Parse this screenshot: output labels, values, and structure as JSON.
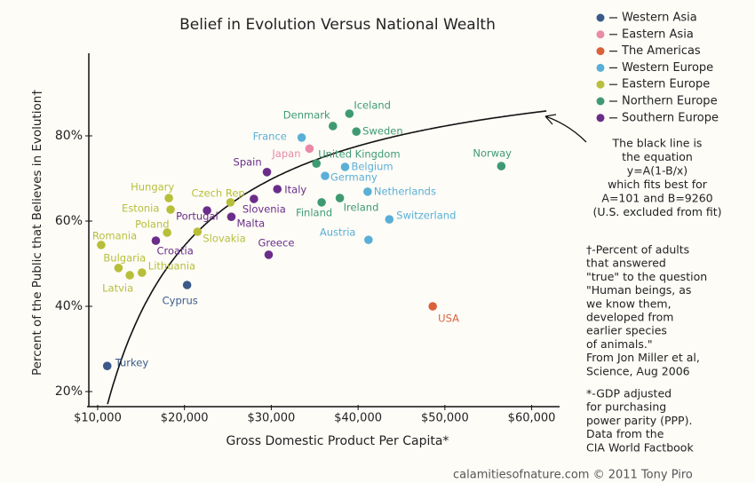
{
  "chart_data": {
    "type": "scatter",
    "title": "Belief in Evolution Versus National Wealth",
    "x_label": "Gross Domestic Product Per Capita*",
    "y_label": "Percent of the Public that Believes in Evolution†",
    "xlim": [
      9000,
      62500
    ],
    "ylim": [
      17,
      97
    ],
    "xticks": [
      {
        "value": 10000,
        "label": "$10,000"
      },
      {
        "value": 20000,
        "label": "$20,000"
      },
      {
        "value": 30000,
        "label": "$30,000"
      },
      {
        "value": 40000,
        "label": "$40,000"
      },
      {
        "value": 50000,
        "label": "$50,000"
      },
      {
        "value": 60000,
        "label": "$60,000"
      }
    ],
    "yticks": [
      {
        "value": 20,
        "label": "20%"
      },
      {
        "value": 40,
        "label": "40%"
      },
      {
        "value": 60,
        "label": "60%"
      },
      {
        "value": 80,
        "label": "80%"
      }
    ],
    "fit": {
      "A": 101,
      "B": 9260
    },
    "series": [
      {
        "name": "Western Asia",
        "color": "#3b5a8a",
        "labels": [
          "Turkey",
          "Cyprus"
        ],
        "x": [
          11100,
          20300
        ],
        "values": [
          26,
          45
        ]
      },
      {
        "name": "Eastern Asia",
        "color": "#e88aa8",
        "labels": [
          "Japan"
        ],
        "x": [
          34400
        ],
        "values": [
          77
        ]
      },
      {
        "name": "The Americas",
        "color": "#d9623b",
        "labels": [
          "USA"
        ],
        "x": [
          48600
        ],
        "values": [
          40
        ]
      },
      {
        "name": "Western Europe",
        "color": "#5aafd6",
        "labels": [
          "France",
          "Belgium",
          "Germany",
          "Netherlands",
          "Switzerland",
          "Austria"
        ],
        "x": [
          33500,
          38500,
          36200,
          41100,
          43600,
          41200
        ],
        "values": [
          79.6,
          72.7,
          70.6,
          66.9,
          60.4,
          55.6
        ]
      },
      {
        "name": "Eastern Europe",
        "color": "#b7bf3a",
        "labels": [
          "Latvia",
          "Lithuania",
          "Bulgaria",
          "Romania",
          "Poland",
          "Slovakia",
          "Estonia",
          "Hungary",
          "Czech Rep"
        ],
        "x": [
          13700,
          15100,
          12400,
          10400,
          18000,
          21500,
          18400,
          18200,
          25300
        ],
        "values": [
          47.3,
          47.9,
          49,
          54.4,
          57.3,
          57.5,
          62.7,
          65.4,
          64.4
        ]
      },
      {
        "name": "Northern Europe",
        "color": "#3f9a72",
        "labels": [
          "Denmark",
          "Iceland",
          "Sweden",
          "United Kingdom",
          "Finland",
          "Ireland",
          "Norway"
        ],
        "x": [
          37100,
          39000,
          39800,
          35200,
          35800,
          37900,
          56500
        ],
        "values": [
          82.3,
          85.2,
          81,
          73.5,
          64.4,
          65.4,
          72.9
        ]
      },
      {
        "name": "Southern Europe",
        "color": "#6a2e8a",
        "labels": [
          "Croatia",
          "Portugal",
          "Malta",
          "Slovenia",
          "Italy",
          "Greece",
          "Spain"
        ],
        "x": [
          16700,
          22600,
          25400,
          28000,
          30700,
          29700,
          29500
        ],
        "values": [
          55.4,
          62.5,
          61,
          65.2,
          67.5,
          52.1,
          71.5
        ]
      }
    ],
    "annotation_fit": [
      "The black line is",
      "the equation",
      "y=A(1-B/x)",
      "which fits best for",
      "A=101 and B=9260",
      "(U.S. excluded from fit)"
    ],
    "annotation_dagger": [
      "†-Percent of adults",
      "that answered",
      "\"true\" to the question",
      "\"Human beings, as",
      "we know them,",
      "developed from",
      "earlier species",
      "of animals.\"",
      "From Jon Miller et al,",
      "Science, Aug 2006"
    ],
    "annotation_star": [
      "*-GDP adjusted",
      "for purchasing",
      "power parity (PPP).",
      "Data from the",
      "CIA World Factbook"
    ],
    "credit": "calamitiesofnature.com © 2011 Tony Piro"
  }
}
